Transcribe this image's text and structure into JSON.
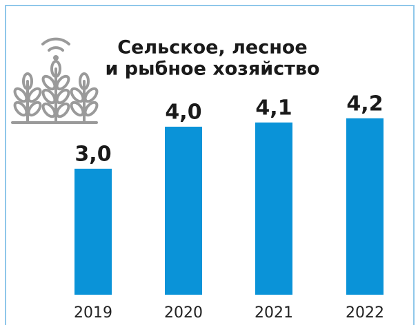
{
  "chart_data": {
    "type": "bar",
    "title": [
      "Сельское, лесное",
      "и рыбное хозяйство"
    ],
    "categories": [
      "2019",
      "2020",
      "2021",
      "2022"
    ],
    "values": [
      3.0,
      4.0,
      4.1,
      4.2
    ],
    "value_labels": [
      "3,0",
      "4,0",
      "4,1",
      "4,2"
    ],
    "color": "#0a93d8"
  }
}
